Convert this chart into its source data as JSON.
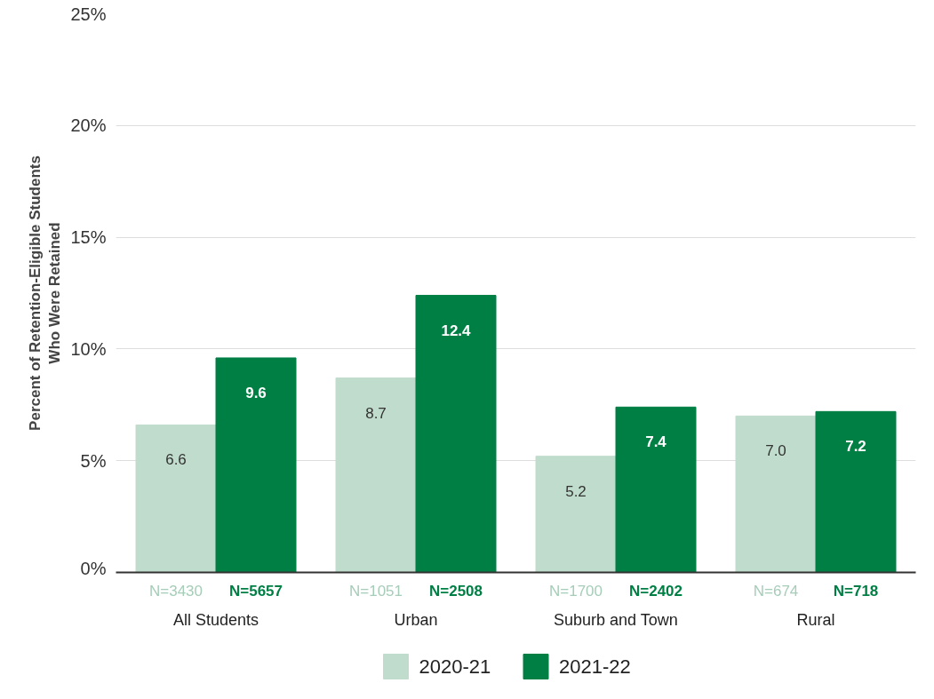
{
  "chart_data": {
    "type": "bar",
    "ylabel": "Percent of Retention-Eligible Students\nWho Were Retained",
    "categories": [
      "All Students",
      "Urban",
      "Suburb and Town",
      "Rural"
    ],
    "series": [
      {
        "name": "2020-21",
        "color": "#c0dccc",
        "values": [
          6.6,
          8.7,
          5.2,
          7.0
        ],
        "value_labels": [
          "6.6",
          "8.7",
          "5.2",
          "7.0"
        ]
      },
      {
        "name": "2021-22",
        "color": "#007f45",
        "values": [
          9.6,
          12.4,
          7.4,
          7.2
        ],
        "value_labels": [
          "9.6",
          "12.4",
          "7.4",
          "7.2"
        ]
      }
    ],
    "ylim": [
      0,
      25
    ],
    "yticks": [
      {
        "value": 0,
        "label": "0%"
      },
      {
        "value": 5,
        "label": "5%"
      },
      {
        "value": 10,
        "label": "10%"
      },
      {
        "value": 15,
        "label": "15%"
      },
      {
        "value": 20,
        "label": "20%"
      },
      {
        "value": 25,
        "label": "25%"
      }
    ],
    "annotations": [
      "N=3430",
      "N=5657",
      "N=1051",
      "N=2508",
      "N=1700",
      "N=2402",
      "N=674",
      "N=718"
    ],
    "grid": "y",
    "legend": "bottom"
  }
}
